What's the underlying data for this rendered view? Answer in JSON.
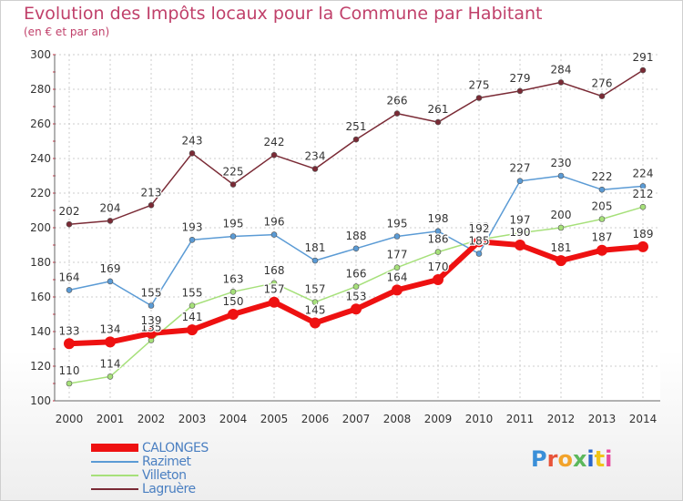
{
  "header": {
    "title": "Evolution des Impôts locaux pour la Commune par Habitant",
    "subtitle": "(en € et par an)"
  },
  "chart_data": {
    "type": "line",
    "x": [
      "2000",
      "2001",
      "2002",
      "2003",
      "2004",
      "2005",
      "2006",
      "2007",
      "2008",
      "2009",
      "2010",
      "2011",
      "2012",
      "2013",
      "2014"
    ],
    "ylim": [
      100,
      300
    ],
    "yticks": [
      100,
      120,
      140,
      160,
      180,
      200,
      220,
      240,
      260,
      280,
      300
    ],
    "grid": true,
    "series": [
      {
        "name": "CALONGES",
        "color": "#ee1111",
        "values": [
          133,
          134,
          139,
          141,
          150,
          157,
          145,
          153,
          164,
          170,
          192,
          190,
          181,
          187,
          189
        ]
      },
      {
        "name": "Razimet",
        "color": "#5b9bd5",
        "values": [
          164,
          169,
          155,
          193,
          195,
          196,
          181,
          188,
          195,
          198,
          185,
          227,
          230,
          222,
          224
        ]
      },
      {
        "name": "Villeton",
        "color": "#a6e07a",
        "values": [
          110,
          114,
          135,
          155,
          163,
          168,
          157,
          166,
          177,
          186,
          193,
          197,
          200,
          205,
          212
        ]
      },
      {
        "name": "Lagruère",
        "color": "#7a2a35",
        "values": [
          202,
          204,
          213,
          243,
          225,
          242,
          234,
          251,
          266,
          261,
          275,
          279,
          284,
          276,
          291
        ]
      }
    ]
  },
  "logo": {
    "letters": [
      "P",
      "r",
      "o",
      "x",
      "i",
      "t",
      "i"
    ],
    "colors": [
      "#3a8fd8",
      "#e8543a",
      "#f2a32b",
      "#5cb85c",
      "#2a66c9",
      "#f0c419",
      "#e84aa0"
    ]
  }
}
